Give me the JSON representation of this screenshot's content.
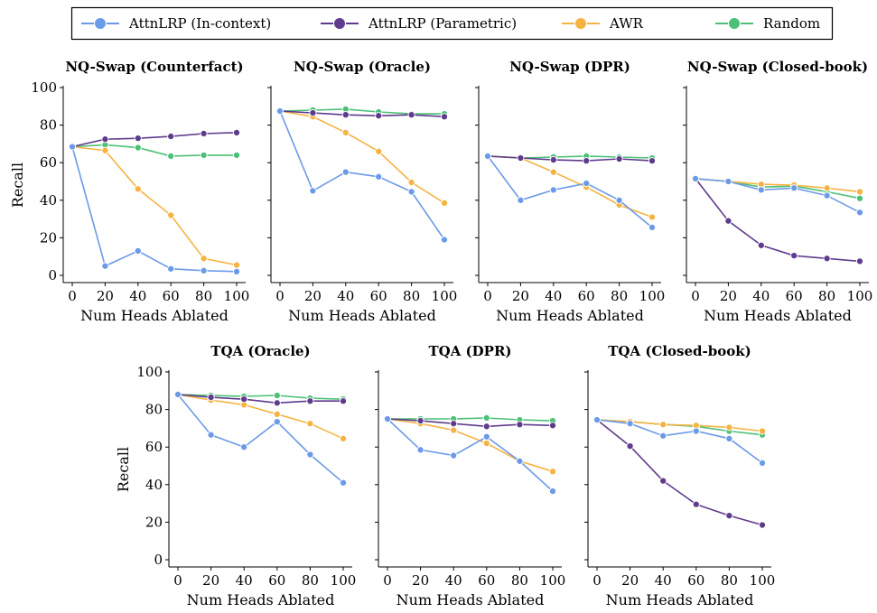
{
  "legend": {
    "position": "top-center",
    "entries": [
      {
        "name": "AttnLRP (In-context)",
        "color": "#6b9ae8"
      },
      {
        "name": "AttnLRP (Parametric)",
        "color": "#5e3b8c"
      },
      {
        "name": "AWR",
        "color": "#f6b342"
      },
      {
        "name": "Random",
        "color": "#4cc077"
      }
    ]
  },
  "chart_data": [
    {
      "type": "line",
      "title": "NQ-Swap (Counterfact)",
      "xlabel": "Num Heads Ablated",
      "ylabel": "Recall",
      "x": [
        0,
        20,
        40,
        60,
        80,
        100
      ],
      "xticks": [
        "0",
        "20",
        "40",
        "60",
        "80",
        "100"
      ],
      "ylim": [
        0,
        100
      ],
      "yticks": [
        "0",
        "20",
        "40",
        "60",
        "80",
        "100"
      ],
      "show_yticklabels": true,
      "series": [
        {
          "name": "AttnLRP (In-context)",
          "values": [
            68.5,
            5.0,
            13.0,
            3.5,
            2.5,
            2.0
          ]
        },
        {
          "name": "AttnLRP (Parametric)",
          "values": [
            68.5,
            72.5,
            73.0,
            74.0,
            75.5,
            76.0
          ]
        },
        {
          "name": "AWR",
          "values": [
            68.5,
            66.5,
            46.0,
            32.0,
            9.0,
            5.5
          ]
        },
        {
          "name": "Random",
          "values": [
            68.5,
            69.5,
            68.0,
            63.5,
            64.0,
            64.0
          ]
        }
      ]
    },
    {
      "type": "line",
      "title": "NQ-Swap (Oracle)",
      "xlabel": "Num Heads Ablated",
      "ylabel": "",
      "x": [
        0,
        20,
        40,
        60,
        80,
        100
      ],
      "xticks": [
        "0",
        "20",
        "40",
        "60",
        "80",
        "100"
      ],
      "ylim": [
        0,
        100
      ],
      "yticks": [
        "0",
        "20",
        "40",
        "60",
        "80",
        "100"
      ],
      "show_yticklabels": false,
      "series": [
        {
          "name": "AttnLRP (In-context)",
          "values": [
            87.5,
            45.0,
            55.0,
            52.5,
            44.5,
            19.0
          ]
        },
        {
          "name": "AttnLRP (Parametric)",
          "values": [
            87.5,
            86.5,
            85.5,
            85.0,
            85.5,
            84.5
          ]
        },
        {
          "name": "AWR",
          "values": [
            87.5,
            84.5,
            76.0,
            66.0,
            49.5,
            38.5
          ]
        },
        {
          "name": "Random",
          "values": [
            87.5,
            88.0,
            88.5,
            87.0,
            86.0,
            86.0
          ]
        }
      ]
    },
    {
      "type": "line",
      "title": "NQ-Swap (DPR)",
      "xlabel": "Num Heads Ablated",
      "ylabel": "",
      "x": [
        0,
        20,
        40,
        60,
        80,
        100
      ],
      "xticks": [
        "0",
        "20",
        "40",
        "60",
        "80",
        "100"
      ],
      "ylim": [
        0,
        100
      ],
      "yticks": [
        "0",
        "20",
        "40",
        "60",
        "80",
        "100"
      ],
      "show_yticklabels": false,
      "series": [
        {
          "name": "AttnLRP (In-context)",
          "values": [
            63.5,
            40.0,
            45.5,
            49.0,
            40.0,
            25.5
          ]
        },
        {
          "name": "AttnLRP (Parametric)",
          "values": [
            63.5,
            62.5,
            61.5,
            61.0,
            62.0,
            61.0
          ]
        },
        {
          "name": "AWR",
          "values": [
            63.5,
            62.5,
            55.0,
            47.0,
            37.5,
            31.0
          ]
        },
        {
          "name": "Random",
          "values": [
            63.5,
            62.5,
            63.0,
            63.5,
            63.0,
            62.5
          ]
        }
      ]
    },
    {
      "type": "line",
      "title": "NQ-Swap (Closed-book)",
      "xlabel": "Num Heads Ablated",
      "ylabel": "",
      "x": [
        0,
        20,
        40,
        60,
        80,
        100
      ],
      "xticks": [
        "0",
        "20",
        "40",
        "60",
        "80",
        "100"
      ],
      "ylim": [
        0,
        100
      ],
      "yticks": [
        "0",
        "20",
        "40",
        "60",
        "80",
        "100"
      ],
      "show_yticklabels": false,
      "series": [
        {
          "name": "AttnLRP (In-context)",
          "values": [
            51.5,
            50.0,
            45.5,
            46.5,
            42.5,
            33.5
          ]
        },
        {
          "name": "AttnLRP (Parametric)",
          "values": [
            51.5,
            29.0,
            16.0,
            10.5,
            9.0,
            7.5
          ]
        },
        {
          "name": "AWR",
          "values": [
            51.5,
            50.0,
            48.5,
            48.0,
            46.5,
            44.5
          ]
        },
        {
          "name": "Random",
          "values": [
            51.5,
            50.0,
            47.0,
            47.5,
            44.5,
            41.0
          ]
        }
      ]
    },
    {
      "type": "line",
      "title": "TQA (Oracle)",
      "xlabel": "Num Heads Ablated",
      "ylabel": "Recall",
      "x": [
        0,
        20,
        40,
        60,
        80,
        100
      ],
      "xticks": [
        "0",
        "20",
        "40",
        "60",
        "80",
        "100"
      ],
      "ylim": [
        0,
        100
      ],
      "yticks": [
        "0",
        "20",
        "40",
        "60",
        "80",
        "100"
      ],
      "show_yticklabels": true,
      "series": [
        {
          "name": "AttnLRP (In-context)",
          "values": [
            88.0,
            66.5,
            60.0,
            73.5,
            56.0,
            41.0
          ]
        },
        {
          "name": "AttnLRP (Parametric)",
          "values": [
            88.0,
            86.5,
            85.5,
            83.5,
            84.5,
            84.5
          ]
        },
        {
          "name": "AWR",
          "values": [
            88.0,
            85.0,
            82.5,
            77.5,
            72.5,
            64.5
          ]
        },
        {
          "name": "Random",
          "values": [
            88.0,
            87.5,
            87.0,
            87.5,
            86.0,
            85.5
          ]
        }
      ]
    },
    {
      "type": "line",
      "title": "TQA (DPR)",
      "xlabel": "Num Heads Ablated",
      "ylabel": "",
      "x": [
        0,
        20,
        40,
        60,
        80,
        100
      ],
      "xticks": [
        "0",
        "20",
        "40",
        "60",
        "80",
        "100"
      ],
      "ylim": [
        0,
        100
      ],
      "yticks": [
        "0",
        "20",
        "40",
        "60",
        "80",
        "100"
      ],
      "show_yticklabels": false,
      "series": [
        {
          "name": "AttnLRP (In-context)",
          "values": [
            75.0,
            58.5,
            55.5,
            65.5,
            52.5,
            36.5
          ]
        },
        {
          "name": "AttnLRP (Parametric)",
          "values": [
            75.0,
            74.0,
            72.5,
            71.0,
            72.0,
            71.5
          ]
        },
        {
          "name": "AWR",
          "values": [
            75.0,
            72.5,
            69.0,
            62.0,
            52.5,
            47.0
          ]
        },
        {
          "name": "Random",
          "values": [
            75.0,
            75.0,
            75.0,
            75.5,
            74.5,
            74.0
          ]
        }
      ]
    },
    {
      "type": "line",
      "title": "TQA (Closed-book)",
      "xlabel": "Num Heads Ablated",
      "ylabel": "",
      "x": [
        0,
        20,
        40,
        60,
        80,
        100
      ],
      "xticks": [
        "0",
        "20",
        "40",
        "60",
        "80",
        "100"
      ],
      "ylim": [
        0,
        100
      ],
      "yticks": [
        "0",
        "20",
        "40",
        "60",
        "80",
        "100"
      ],
      "show_yticklabels": false,
      "series": [
        {
          "name": "AttnLRP (In-context)",
          "values": [
            74.5,
            72.5,
            66.0,
            68.5,
            64.5,
            51.5
          ]
        },
        {
          "name": "AttnLRP (Parametric)",
          "values": [
            74.5,
            60.5,
            42.0,
            29.5,
            23.5,
            18.5
          ]
        },
        {
          "name": "AWR",
          "values": [
            74.5,
            73.5,
            72.0,
            71.5,
            70.5,
            68.5
          ]
        },
        {
          "name": "Random",
          "values": [
            74.5,
            73.5,
            72.0,
            71.0,
            68.5,
            66.5
          ]
        }
      ]
    }
  ]
}
